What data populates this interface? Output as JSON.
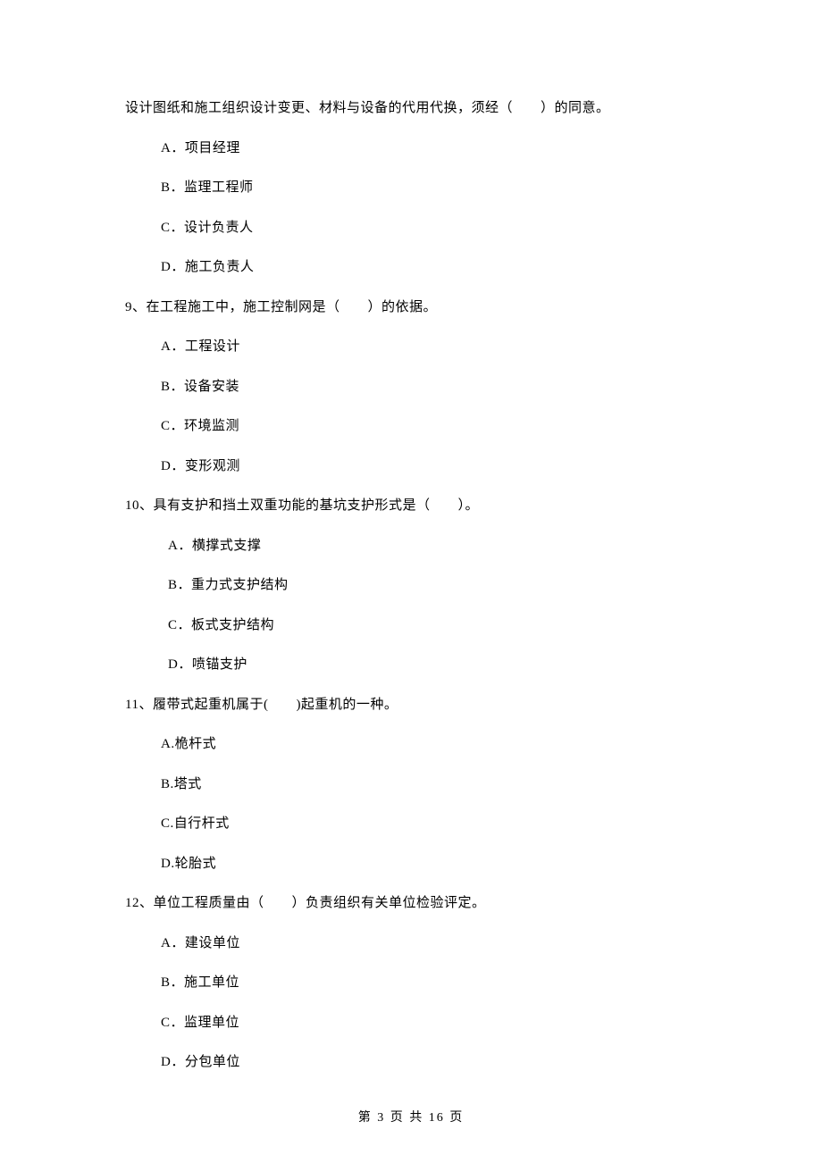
{
  "intro_line": "设计图纸和施工组织设计变更、材料与设备的代用代换，须经（　　）的同意。",
  "q8": {
    "a": "A．项目经理",
    "b": "B．监理工程师",
    "c": "C．设计负责人",
    "d": "D．施工负责人"
  },
  "q9": {
    "stem": "9、在工程施工中，施工控制网是（　　）的依据。",
    "a": "A．工程设计",
    "b": "B．设备安装",
    "c": "C．环境监测",
    "d": "D．变形观测"
  },
  "q10": {
    "stem": "10、具有支护和挡土双重功能的基坑支护形式是（　　）。",
    "a": "A．横撑式支撑",
    "b": "B．重力式支护结构",
    "c": "C．板式支护结构",
    "d": "D．喷锚支护"
  },
  "q11": {
    "stem": "11、履带式起重机属于(　　)起重机的一种。",
    "a": "A.桅杆式",
    "b": "B.塔式",
    "c": "C.自行杆式",
    "d": "D.轮胎式"
  },
  "q12": {
    "stem": "12、单位工程质量由（　　）负责组织有关单位检验评定。",
    "a": "A．建设单位",
    "b": "B．施工单位",
    "c": "C．监理单位",
    "d": "D．分包单位"
  },
  "footer": "第 3 页 共 16 页"
}
